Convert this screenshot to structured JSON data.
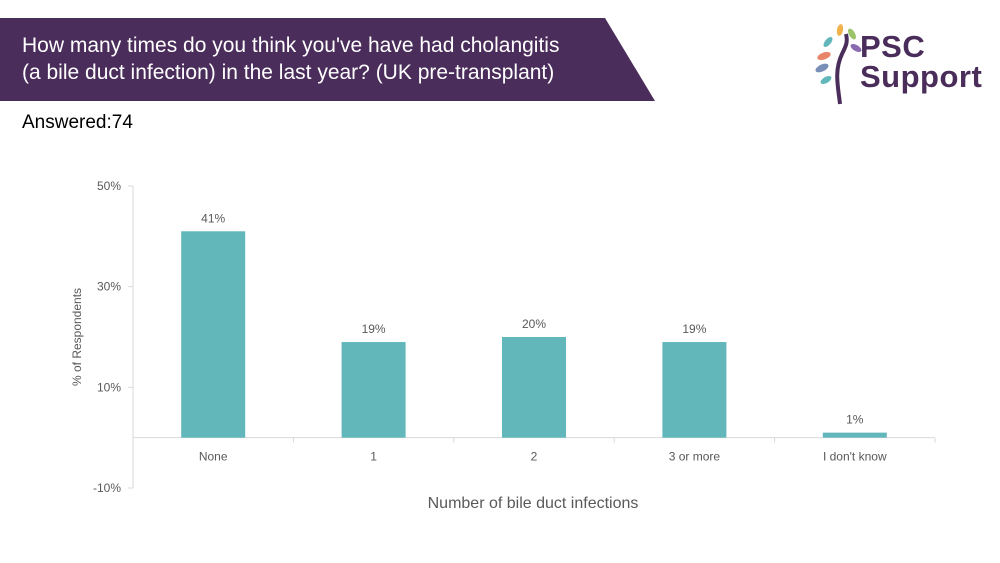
{
  "header": {
    "title_line1": "How many times do you think you've have had cholangitis",
    "title_line2": "(a bile duct infection) in the last year? (UK pre-transplant)",
    "answered": "Answered:74"
  },
  "logo": {
    "line1": "PSC",
    "line2": "Support"
  },
  "colors": {
    "banner": "#4a2d5a",
    "bar": "#62b7bb",
    "axis": "#d9d9d9",
    "text": "#595959"
  },
  "chart_data": {
    "type": "bar",
    "categories": [
      "None",
      "1",
      "2",
      "3 or more",
      "I don't know"
    ],
    "values": [
      41,
      19,
      20,
      19,
      1
    ],
    "data_labels": [
      "41%",
      "19%",
      "20%",
      "19%",
      "1%"
    ],
    "ylim": [
      -10,
      50
    ],
    "yticks": [
      50,
      30,
      10,
      -10
    ],
    "ytick_labels": [
      "50%",
      "30%",
      "10%",
      "-10%"
    ],
    "ylabel": "% of Respondents",
    "xlabel": "Number of bile duct infections",
    "grid": false,
    "legend": "none"
  }
}
